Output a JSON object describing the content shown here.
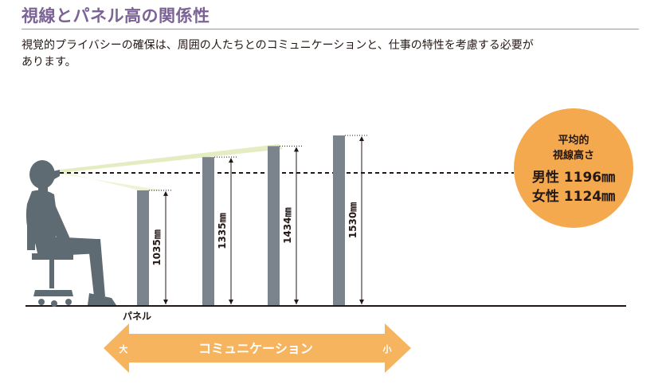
{
  "title": "視線とパネル高の関係性",
  "description": {
    "line1": "視覚的プライバシーの確保は、周囲の人たちとのコミュニケーションと、仕事の特性を考慮する必要が",
    "line2": "あります。"
  },
  "panels": [
    {
      "height_label": "1035㎜",
      "height_mm": 1035
    },
    {
      "height_label": "1335㎜",
      "height_mm": 1335
    },
    {
      "height_label": "1434㎜",
      "height_mm": 1434
    },
    {
      "height_label": "1530㎜",
      "height_mm": 1530
    }
  ],
  "panel_caption": "パネル",
  "average": {
    "title_line1": "平均的",
    "title_line2": "視線高さ",
    "male": "男性 1196㎜",
    "female": "女性 1124㎜",
    "fill_color": "#f5a94f"
  },
  "communication_arrow": {
    "label": "コミュニケーション",
    "left_end": "大",
    "right_end": "小",
    "fill_color": "#f6b45f"
  },
  "colors": {
    "title": "#7b6396",
    "panel": "#7b848c",
    "person": "#5f6b73",
    "sightline": "#e4ecc2"
  }
}
